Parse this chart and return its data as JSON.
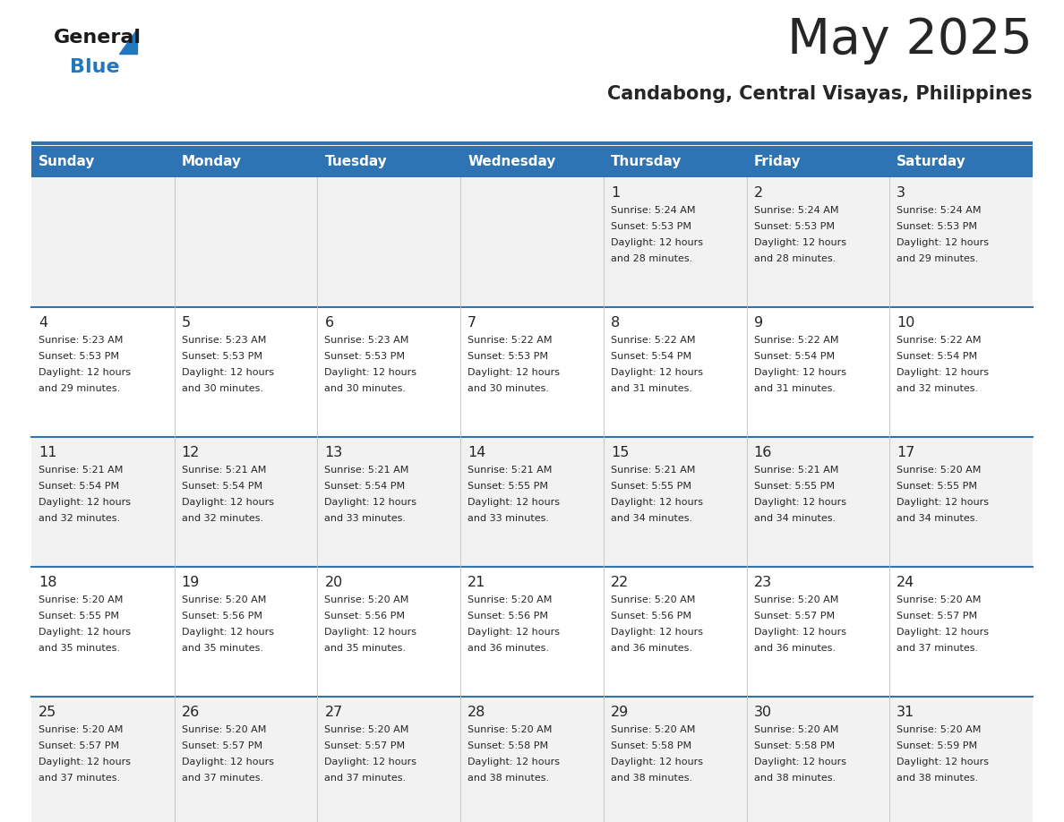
{
  "title": "May 2025",
  "subtitle": "Candabong, Central Visayas, Philippines",
  "header_bg": "#2E74B5",
  "header_text_color": "#FFFFFF",
  "cell_bg_odd": "#F2F2F2",
  "cell_bg_even": "#FFFFFF",
  "separator_color": "#2E74B5",
  "text_color_dark": "#262626",
  "day_headers": [
    "Sunday",
    "Monday",
    "Tuesday",
    "Wednesday",
    "Thursday",
    "Friday",
    "Saturday"
  ],
  "logo_general_color": "#1A1A1A",
  "logo_blue_color": "#2178BE",
  "calendar": [
    [
      null,
      null,
      null,
      null,
      {
        "day": 1,
        "sunrise": "5:24 AM",
        "sunset": "5:53 PM",
        "daylight": "12 hours and 28 minutes"
      },
      {
        "day": 2,
        "sunrise": "5:24 AM",
        "sunset": "5:53 PM",
        "daylight": "12 hours and 28 minutes"
      },
      {
        "day": 3,
        "sunrise": "5:24 AM",
        "sunset": "5:53 PM",
        "daylight": "12 hours and 29 minutes"
      }
    ],
    [
      {
        "day": 4,
        "sunrise": "5:23 AM",
        "sunset": "5:53 PM",
        "daylight": "12 hours and 29 minutes"
      },
      {
        "day": 5,
        "sunrise": "5:23 AM",
        "sunset": "5:53 PM",
        "daylight": "12 hours and 30 minutes"
      },
      {
        "day": 6,
        "sunrise": "5:23 AM",
        "sunset": "5:53 PM",
        "daylight": "12 hours and 30 minutes"
      },
      {
        "day": 7,
        "sunrise": "5:22 AM",
        "sunset": "5:53 PM",
        "daylight": "12 hours and 30 minutes"
      },
      {
        "day": 8,
        "sunrise": "5:22 AM",
        "sunset": "5:54 PM",
        "daylight": "12 hours and 31 minutes"
      },
      {
        "day": 9,
        "sunrise": "5:22 AM",
        "sunset": "5:54 PM",
        "daylight": "12 hours and 31 minutes"
      },
      {
        "day": 10,
        "sunrise": "5:22 AM",
        "sunset": "5:54 PM",
        "daylight": "12 hours and 32 minutes"
      }
    ],
    [
      {
        "day": 11,
        "sunrise": "5:21 AM",
        "sunset": "5:54 PM",
        "daylight": "12 hours and 32 minutes"
      },
      {
        "day": 12,
        "sunrise": "5:21 AM",
        "sunset": "5:54 PM",
        "daylight": "12 hours and 32 minutes"
      },
      {
        "day": 13,
        "sunrise": "5:21 AM",
        "sunset": "5:54 PM",
        "daylight": "12 hours and 33 minutes"
      },
      {
        "day": 14,
        "sunrise": "5:21 AM",
        "sunset": "5:55 PM",
        "daylight": "12 hours and 33 minutes"
      },
      {
        "day": 15,
        "sunrise": "5:21 AM",
        "sunset": "5:55 PM",
        "daylight": "12 hours and 34 minutes"
      },
      {
        "day": 16,
        "sunrise": "5:21 AM",
        "sunset": "5:55 PM",
        "daylight": "12 hours and 34 minutes"
      },
      {
        "day": 17,
        "sunrise": "5:20 AM",
        "sunset": "5:55 PM",
        "daylight": "12 hours and 34 minutes"
      }
    ],
    [
      {
        "day": 18,
        "sunrise": "5:20 AM",
        "sunset": "5:55 PM",
        "daylight": "12 hours and 35 minutes"
      },
      {
        "day": 19,
        "sunrise": "5:20 AM",
        "sunset": "5:56 PM",
        "daylight": "12 hours and 35 minutes"
      },
      {
        "day": 20,
        "sunrise": "5:20 AM",
        "sunset": "5:56 PM",
        "daylight": "12 hours and 35 minutes"
      },
      {
        "day": 21,
        "sunrise": "5:20 AM",
        "sunset": "5:56 PM",
        "daylight": "12 hours and 36 minutes"
      },
      {
        "day": 22,
        "sunrise": "5:20 AM",
        "sunset": "5:56 PM",
        "daylight": "12 hours and 36 minutes"
      },
      {
        "day": 23,
        "sunrise": "5:20 AM",
        "sunset": "5:57 PM",
        "daylight": "12 hours and 36 minutes"
      },
      {
        "day": 24,
        "sunrise": "5:20 AM",
        "sunset": "5:57 PM",
        "daylight": "12 hours and 37 minutes"
      }
    ],
    [
      {
        "day": 25,
        "sunrise": "5:20 AM",
        "sunset": "5:57 PM",
        "daylight": "12 hours and 37 minutes"
      },
      {
        "day": 26,
        "sunrise": "5:20 AM",
        "sunset": "5:57 PM",
        "daylight": "12 hours and 37 minutes"
      },
      {
        "day": 27,
        "sunrise": "5:20 AM",
        "sunset": "5:57 PM",
        "daylight": "12 hours and 37 minutes"
      },
      {
        "day": 28,
        "sunrise": "5:20 AM",
        "sunset": "5:58 PM",
        "daylight": "12 hours and 38 minutes"
      },
      {
        "day": 29,
        "sunrise": "5:20 AM",
        "sunset": "5:58 PM",
        "daylight": "12 hours and 38 minutes"
      },
      {
        "day": 30,
        "sunrise": "5:20 AM",
        "sunset": "5:58 PM",
        "daylight": "12 hours and 38 minutes"
      },
      {
        "day": 31,
        "sunrise": "5:20 AM",
        "sunset": "5:59 PM",
        "daylight": "12 hours and 38 minutes"
      }
    ]
  ]
}
